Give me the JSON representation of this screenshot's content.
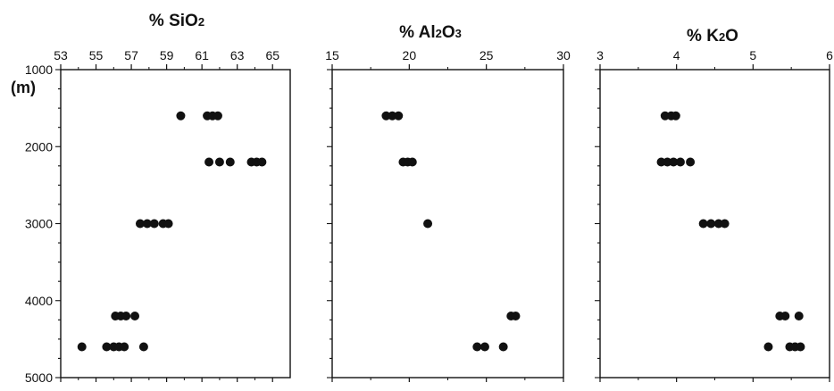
{
  "y_axis": {
    "unit_label": "(m)",
    "ticks": [
      "1000",
      "2000",
      "3000",
      "4000",
      "5000"
    ]
  },
  "chart_data": [
    {
      "type": "scatter",
      "title": "% SiO2",
      "title_parts": [
        {
          "t": "% SiO",
          "sub": false
        },
        {
          "t": "2",
          "sub": true
        }
      ],
      "xlim": [
        53,
        66
      ],
      "x_ticks": [
        53,
        55,
        57,
        59,
        61,
        63,
        65
      ],
      "ylim": [
        1000,
        5000
      ],
      "y_ticks": [
        1000,
        2000,
        3000,
        4000,
        5000
      ],
      "ylabel": "(m)",
      "points": [
        {
          "x": 59.8,
          "y": 1600
        },
        {
          "x": 61.3,
          "y": 1600
        },
        {
          "x": 61.6,
          "y": 1600
        },
        {
          "x": 61.9,
          "y": 1600
        },
        {
          "x": 61.4,
          "y": 2200
        },
        {
          "x": 62.0,
          "y": 2200
        },
        {
          "x": 62.6,
          "y": 2200
        },
        {
          "x": 63.8,
          "y": 2200
        },
        {
          "x": 64.1,
          "y": 2200
        },
        {
          "x": 64.4,
          "y": 2200
        },
        {
          "x": 57.5,
          "y": 3000
        },
        {
          "x": 57.9,
          "y": 3000
        },
        {
          "x": 58.3,
          "y": 3000
        },
        {
          "x": 58.8,
          "y": 3000
        },
        {
          "x": 59.1,
          "y": 3000
        },
        {
          "x": 56.1,
          "y": 4200
        },
        {
          "x": 56.4,
          "y": 4200
        },
        {
          "x": 56.7,
          "y": 4200
        },
        {
          "x": 57.2,
          "y": 4200
        },
        {
          "x": 54.2,
          "y": 4600
        },
        {
          "x": 55.6,
          "y": 4600
        },
        {
          "x": 56.0,
          "y": 4600
        },
        {
          "x": 56.3,
          "y": 4600
        },
        {
          "x": 56.6,
          "y": 4600
        },
        {
          "x": 57.7,
          "y": 4600
        }
      ]
    },
    {
      "type": "scatter",
      "title": "% Al2O3",
      "title_parts": [
        {
          "t": "% Al",
          "sub": false
        },
        {
          "t": "2",
          "sub": true
        },
        {
          "t": "O",
          "sub": false
        },
        {
          "t": "3",
          "sub": true
        }
      ],
      "xlim": [
        15,
        30
      ],
      "x_ticks": [
        15,
        20,
        25,
        30
      ],
      "ylim": [
        1000,
        5000
      ],
      "y_ticks": [
        1000,
        2000,
        3000,
        4000,
        5000
      ],
      "points": [
        {
          "x": 18.5,
          "y": 1600
        },
        {
          "x": 18.9,
          "y": 1600
        },
        {
          "x": 19.3,
          "y": 1600
        },
        {
          "x": 19.6,
          "y": 2200
        },
        {
          "x": 19.9,
          "y": 2200
        },
        {
          "x": 20.2,
          "y": 2200
        },
        {
          "x": 21.2,
          "y": 3000
        },
        {
          "x": 26.6,
          "y": 4200
        },
        {
          "x": 26.9,
          "y": 4200
        },
        {
          "x": 24.4,
          "y": 4600
        },
        {
          "x": 24.9,
          "y": 4600
        },
        {
          "x": 26.1,
          "y": 4600
        }
      ]
    },
    {
      "type": "scatter",
      "title": "% K2O",
      "title_parts": [
        {
          "t": "% K",
          "sub": false
        },
        {
          "t": "2",
          "sub": true
        },
        {
          "t": "O",
          "sub": false
        }
      ],
      "xlim": [
        3,
        6
      ],
      "x_ticks": [
        3,
        4,
        5,
        6
      ],
      "ylim": [
        1000,
        5000
      ],
      "y_ticks": [
        1000,
        2000,
        3000,
        4000,
        5000
      ],
      "points": [
        {
          "x": 3.85,
          "y": 1600
        },
        {
          "x": 3.93,
          "y": 1600
        },
        {
          "x": 3.99,
          "y": 1600
        },
        {
          "x": 3.8,
          "y": 2200
        },
        {
          "x": 3.88,
          "y": 2200
        },
        {
          "x": 3.96,
          "y": 2200
        },
        {
          "x": 4.05,
          "y": 2200
        },
        {
          "x": 4.18,
          "y": 2200
        },
        {
          "x": 4.35,
          "y": 3000
        },
        {
          "x": 4.45,
          "y": 3000
        },
        {
          "x": 4.55,
          "y": 3000
        },
        {
          "x": 4.63,
          "y": 3000
        },
        {
          "x": 5.35,
          "y": 4200
        },
        {
          "x": 5.42,
          "y": 4200
        },
        {
          "x": 5.6,
          "y": 4200
        },
        {
          "x": 5.2,
          "y": 4600
        },
        {
          "x": 5.48,
          "y": 4600
        },
        {
          "x": 5.55,
          "y": 4600
        },
        {
          "x": 5.62,
          "y": 4600
        }
      ]
    }
  ]
}
